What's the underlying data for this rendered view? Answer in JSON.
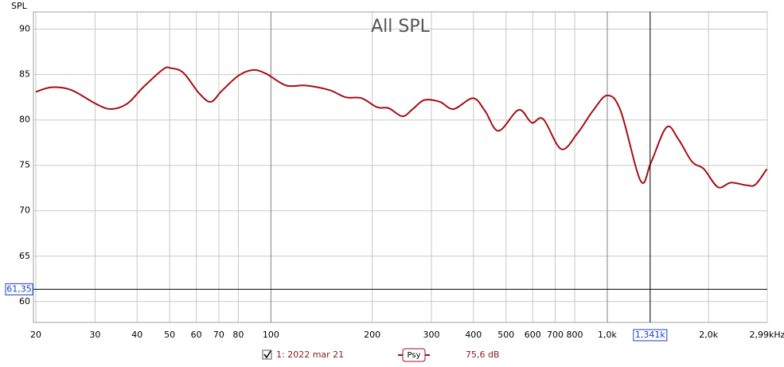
{
  "chart_data": {
    "type": "line",
    "title": "All SPL",
    "y_label": "SPL",
    "log_x": true,
    "grid": true,
    "xlim": [
      20,
      2990
    ],
    "ylim": [
      57.7,
      91.9
    ],
    "yticks": [
      60,
      65,
      70,
      75,
      80,
      85,
      90
    ],
    "xticks": [
      20,
      30,
      40,
      50,
      60,
      70,
      80,
      100,
      200,
      300,
      400,
      500,
      600,
      700,
      800,
      {
        "value": 1000,
        "label": "1,0k"
      },
      {
        "value": 2000,
        "label": "2,0k"
      },
      {
        "value": 2990,
        "label": "2,99kHz"
      }
    ],
    "x": [
      20,
      22.3,
      25.5,
      30.1,
      33.4,
      37.4,
      41.7,
      47.9,
      50.5,
      54.9,
      61.3,
      66.3,
      71.4,
      80.2,
      88.4,
      96.8,
      111,
      127,
      149,
      167,
      186,
      207,
      224,
      246,
      264,
      286,
      318,
      349,
      399,
      433,
      475,
      545,
      596,
      645,
      729,
      814,
      906,
      1000,
      1096,
      1256,
      1348,
      1500,
      1626,
      1786,
      1937,
      2133,
      2333,
      2600,
      2760,
      2980
    ],
    "series": [
      {
        "name": "1: 2022 mar 21",
        "color": "#a50f15",
        "values": [
          83.1,
          83.6,
          83.3,
          81.8,
          81.2,
          81.8,
          83.6,
          85.6,
          85.7,
          85.2,
          82.9,
          82.0,
          83.2,
          84.9,
          85.5,
          85.1,
          83.8,
          83.8,
          83.3,
          82.5,
          82.4,
          81.4,
          81.3,
          80.4,
          81.2,
          82.2,
          82.0,
          81.2,
          82.4,
          81.0,
          78.8,
          81.1,
          79.7,
          80.1,
          76.8,
          78.5,
          81.0,
          82.7,
          81.0,
          73.3,
          75.3,
          79.2,
          77.9,
          75.4,
          74.6,
          72.6,
          73.1,
          72.8,
          72.9,
          74.6
        ]
      }
    ],
    "smoothing": "Psy",
    "cursor": {
      "x": 1341,
      "x_label": "1,341k",
      "y": 61.35,
      "y_label": "61,35"
    },
    "readout": {
      "value": 75.6,
      "label": "75,6 dB"
    }
  }
}
